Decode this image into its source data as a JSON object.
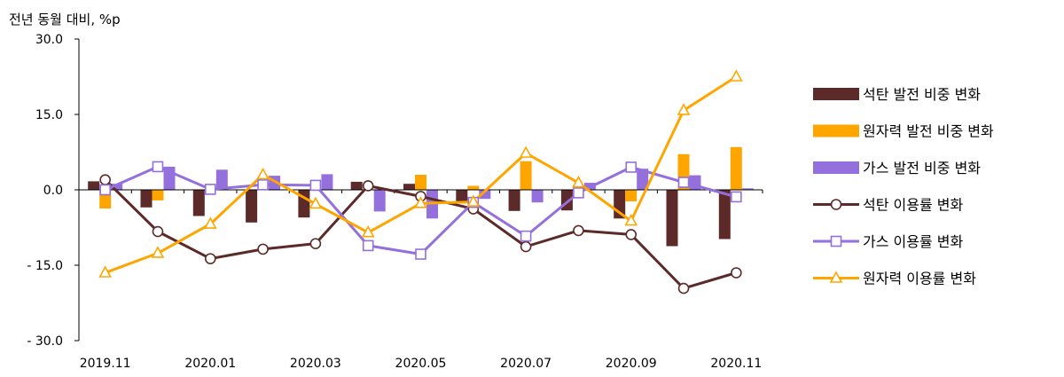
{
  "chart_data": {
    "type": "bar+line",
    "title": "",
    "unit_label": "전년 동월 대비, %p",
    "ylim": [
      -30,
      30
    ],
    "y_ticks": [
      30,
      15,
      0,
      -15,
      -30
    ],
    "y_tick_labels": [
      "30.0",
      "15.0",
      "0.0",
      "- 15.0",
      "- 30.0"
    ],
    "categories": [
      "2019.11",
      "2019.12",
      "2020.01",
      "2020.02",
      "2020.03",
      "2020.04",
      "2020.05",
      "2020.06",
      "2020.07",
      "2020.08",
      "2020.09",
      "2020.10",
      "2020.11"
    ],
    "x_tick_labels": [
      "2019.11",
      "",
      "2020.01",
      "",
      "2020.03",
      "",
      "2020.05",
      "",
      "2020.07",
      "",
      "2020.09",
      "",
      "2020.11"
    ],
    "legend_position": "right",
    "grid": false,
    "bar_series": [
      {
        "name": "석탄 발전 비중 변화",
        "color": "#5c2a28",
        "values": [
          1.7,
          -3.5,
          -5.2,
          -6.5,
          -5.5,
          1.6,
          1.2,
          -2.5,
          -4.2,
          -4.1,
          -5.7,
          -11.2,
          -9.8
        ]
      },
      {
        "name": "원자력 발전 비중 변화",
        "color": "#ffa500",
        "values": [
          -3.7,
          -2.1,
          0.0,
          0.0,
          0.0,
          0.0,
          3.0,
          0.8,
          5.7,
          0.0,
          -2.3,
          7.1,
          8.5
        ]
      },
      {
        "name": "가스 발전 비중 변화",
        "color": "#9370db",
        "values": [
          1.2,
          4.6,
          4.0,
          2.8,
          3.1,
          -4.3,
          -5.7,
          -1.8,
          -2.5,
          1.4,
          4.2,
          2.9,
          0.3
        ]
      }
    ],
    "line_series": [
      {
        "name": "석탄 이용률 변화",
        "color": "#5c2a28",
        "marker": "circle",
        "values": [
          2.0,
          -8.3,
          -13.7,
          -11.8,
          -10.7,
          0.8,
          -1.3,
          -3.8,
          -11.3,
          -8.1,
          -8.9,
          -19.6,
          -16.5
        ]
      },
      {
        "name": "가스 이용률 변화",
        "color": "#9370db",
        "marker": "square",
        "values": [
          0.0,
          4.6,
          0.1,
          1.0,
          0.9,
          -11.1,
          -12.8,
          -2.5,
          -9.2,
          -0.6,
          4.5,
          1.5,
          -1.4
        ]
      },
      {
        "name": "원자력 이용률 변화",
        "color": "#ffa500",
        "marker": "triangle",
        "values": [
          -16.5,
          -12.6,
          -6.8,
          3.0,
          -2.8,
          -8.5,
          -2.7,
          -2.4,
          7.3,
          1.4,
          -6.2,
          15.8,
          22.5
        ]
      }
    ]
  }
}
